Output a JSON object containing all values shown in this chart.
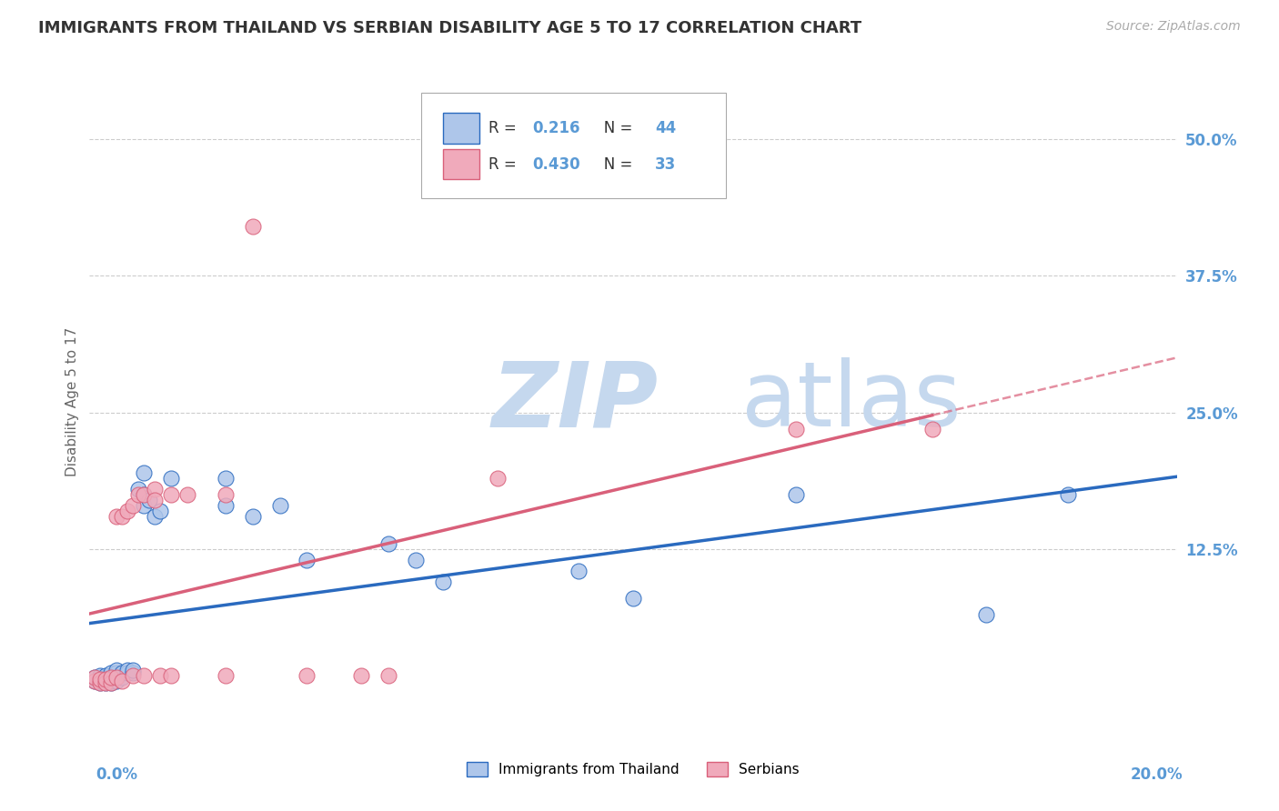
{
  "title": "IMMIGRANTS FROM THAILAND VS SERBIAN DISABILITY AGE 5 TO 17 CORRELATION CHART",
  "source": "Source: ZipAtlas.com",
  "ylabel": "Disability Age 5 to 17",
  "right_ytick_labels": [
    "50.0%",
    "37.5%",
    "25.0%",
    "12.5%"
  ],
  "right_ytick_values": [
    0.5,
    0.375,
    0.25,
    0.125
  ],
  "legend_entries": [
    {
      "label": "Immigrants from Thailand",
      "R": "0.216",
      "N": "44",
      "color": "#aec6ea"
    },
    {
      "label": "Serbians",
      "R": "0.430",
      "N": "33",
      "color": "#f0aabb"
    }
  ],
  "xmin": 0.0,
  "xmax": 0.2,
  "ymin": -0.04,
  "ymax": 0.56,
  "thailand_points": [
    [
      0.001,
      0.005
    ],
    [
      0.001,
      0.008
    ],
    [
      0.002,
      0.003
    ],
    [
      0.002,
      0.005
    ],
    [
      0.002,
      0.01
    ],
    [
      0.003,
      0.003
    ],
    [
      0.003,
      0.005
    ],
    [
      0.003,
      0.008
    ],
    [
      0.003,
      0.01
    ],
    [
      0.004,
      0.003
    ],
    [
      0.004,
      0.005
    ],
    [
      0.004,
      0.008
    ],
    [
      0.004,
      0.012
    ],
    [
      0.005,
      0.005
    ],
    [
      0.005,
      0.008
    ],
    [
      0.005,
      0.012
    ],
    [
      0.005,
      0.015
    ],
    [
      0.006,
      0.008
    ],
    [
      0.006,
      0.012
    ],
    [
      0.007,
      0.012
    ],
    [
      0.007,
      0.015
    ],
    [
      0.008,
      0.012
    ],
    [
      0.008,
      0.015
    ],
    [
      0.009,
      0.18
    ],
    [
      0.01,
      0.195
    ],
    [
      0.01,
      0.175
    ],
    [
      0.01,
      0.165
    ],
    [
      0.011,
      0.17
    ],
    [
      0.012,
      0.155
    ],
    [
      0.013,
      0.16
    ],
    [
      0.015,
      0.19
    ],
    [
      0.025,
      0.19
    ],
    [
      0.025,
      0.165
    ],
    [
      0.03,
      0.155
    ],
    [
      0.035,
      0.165
    ],
    [
      0.04,
      0.115
    ],
    [
      0.055,
      0.13
    ],
    [
      0.06,
      0.115
    ],
    [
      0.065,
      0.095
    ],
    [
      0.09,
      0.105
    ],
    [
      0.1,
      0.08
    ],
    [
      0.13,
      0.175
    ],
    [
      0.165,
      0.065
    ],
    [
      0.18,
      0.175
    ]
  ],
  "serbian_points": [
    [
      0.001,
      0.005
    ],
    [
      0.001,
      0.008
    ],
    [
      0.002,
      0.003
    ],
    [
      0.002,
      0.006
    ],
    [
      0.003,
      0.003
    ],
    [
      0.003,
      0.006
    ],
    [
      0.004,
      0.003
    ],
    [
      0.004,
      0.008
    ],
    [
      0.005,
      0.008
    ],
    [
      0.005,
      0.155
    ],
    [
      0.006,
      0.005
    ],
    [
      0.006,
      0.155
    ],
    [
      0.007,
      0.16
    ],
    [
      0.008,
      0.01
    ],
    [
      0.008,
      0.165
    ],
    [
      0.009,
      0.175
    ],
    [
      0.01,
      0.01
    ],
    [
      0.01,
      0.175
    ],
    [
      0.012,
      0.18
    ],
    [
      0.012,
      0.17
    ],
    [
      0.013,
      0.01
    ],
    [
      0.015,
      0.175
    ],
    [
      0.015,
      0.01
    ],
    [
      0.018,
      0.175
    ],
    [
      0.025,
      0.01
    ],
    [
      0.025,
      0.175
    ],
    [
      0.03,
      0.42
    ],
    [
      0.04,
      0.01
    ],
    [
      0.05,
      0.01
    ],
    [
      0.055,
      0.01
    ],
    [
      0.075,
      0.19
    ],
    [
      0.13,
      0.235
    ],
    [
      0.155,
      0.235
    ]
  ],
  "thailand_line_color": "#2a6abf",
  "serbian_line_color": "#d9607a",
  "bg_color": "#ffffff",
  "grid_color": "#cccccc",
  "title_color": "#333333",
  "watermark_zip": "ZIP",
  "watermark_atlas": "atlas",
  "watermark_color_zip": "#c5d8ee",
  "watermark_color_atlas": "#c5d8ee",
  "title_fontsize": 13,
  "axis_label_color": "#5a9ad5"
}
